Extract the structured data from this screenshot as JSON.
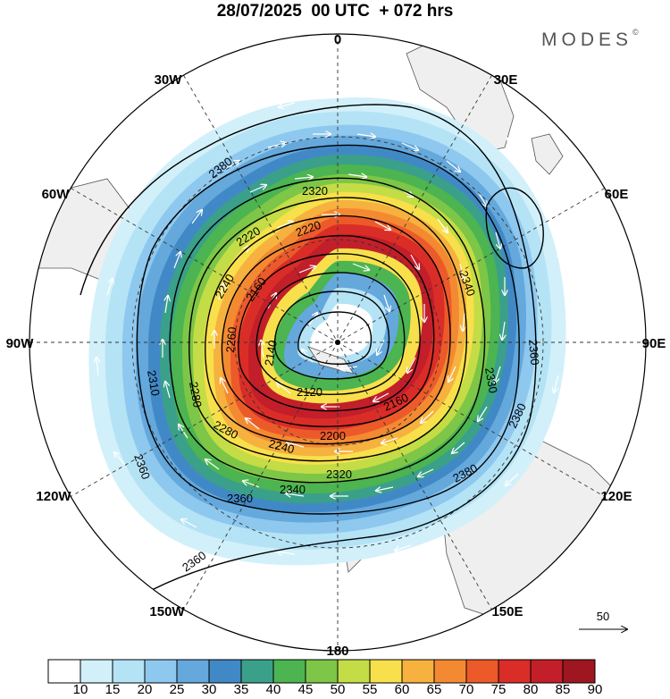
{
  "header": {
    "title": "28/07/2025  00 UTC  + 072 hrs",
    "brand": "MODES",
    "brand_mark": "©"
  },
  "longitude_labels": [
    "0",
    "30E",
    "60E",
    "90E",
    "120E",
    "150E",
    "180",
    "150W",
    "120W",
    "90W",
    "60W",
    "30W"
  ],
  "contours": [
    {
      "value": "2380"
    },
    {
      "value": "2380"
    },
    {
      "value": "2380"
    },
    {
      "value": "2320"
    },
    {
      "value": "2320"
    },
    {
      "value": "2340"
    },
    {
      "value": "2220"
    },
    {
      "value": "2240"
    },
    {
      "value": "2160"
    },
    {
      "value": "2140"
    },
    {
      "value": "2120"
    },
    {
      "value": "2160"
    },
    {
      "value": "2200"
    },
    {
      "value": "2240"
    },
    {
      "value": "2280"
    },
    {
      "value": "2280"
    },
    {
      "value": "2340"
    },
    {
      "value": "2360"
    },
    {
      "value": "2360"
    },
    {
      "value": "2360"
    },
    {
      "value": "2310"
    },
    {
      "value": "2330"
    },
    {
      "value": "2260"
    },
    {
      "value": "2220"
    },
    {
      "value": "2360"
    }
  ],
  "vector_reference": {
    "value": "50"
  },
  "colorbar": {
    "ticks": [
      "10",
      "15",
      "20",
      "25",
      "30",
      "35",
      "40",
      "45",
      "50",
      "55",
      "60",
      "65",
      "70",
      "75",
      "80",
      "85",
      "90"
    ],
    "colors": [
      "#ffffff",
      "#d2f0fa",
      "#b4e3f5",
      "#8ec8ef",
      "#64a8dc",
      "#4189c6",
      "#3aa08a",
      "#4cb450",
      "#7dc647",
      "#c4dc45",
      "#f7e04b",
      "#f6b13e",
      "#f38a32",
      "#ec5a2a",
      "#da2d27",
      "#c21f2a",
      "#9e1620"
    ]
  }
}
